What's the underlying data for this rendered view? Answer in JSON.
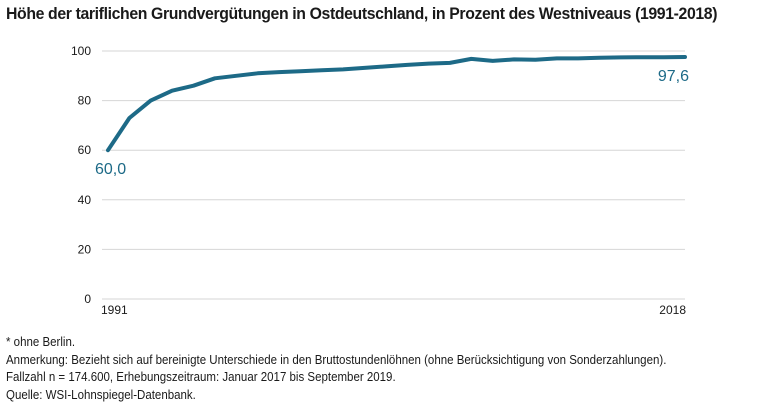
{
  "title": "Höhe der tariflichen Grundvergütungen in Ostdeutschland, in Prozent des Westniveaus (1991-2018)",
  "chart_data": {
    "type": "line",
    "title": "Höhe der tariflichen Grundvergütungen in Ostdeutschland, in Prozent des Westniveaus (1991-2018)",
    "xlabel": "",
    "ylabel": "",
    "x": [
      1991,
      1992,
      1993,
      1994,
      1995,
      1996,
      1997,
      1998,
      1999,
      2000,
      2001,
      2002,
      2003,
      2004,
      2005,
      2006,
      2007,
      2008,
      2009,
      2010,
      2011,
      2012,
      2013,
      2014,
      2015,
      2016,
      2017,
      2018
    ],
    "series": [
      {
        "name": "",
        "color": "#1d6a87",
        "values": [
          60.0,
          73.0,
          80.0,
          84.0,
          86.0,
          89.0,
          90.0,
          91.0,
          91.5,
          91.8,
          92.2,
          92.6,
          93.2,
          93.8,
          94.4,
          94.9,
          95.2,
          96.8,
          96.0,
          96.6,
          96.5,
          97.0,
          97.0,
          97.3,
          97.4,
          97.5,
          97.5,
          97.6
        ]
      }
    ],
    "xlim": [
      1991,
      2018
    ],
    "ylim": [
      0,
      100
    ],
    "yticks": [
      0,
      20,
      40,
      60,
      80,
      100
    ],
    "xtick_labels": [
      "1991",
      "2018"
    ],
    "grid": "horizontal",
    "annotations": [
      {
        "text": "60,0",
        "x": 1991,
        "y": 60.0
      },
      {
        "text": "97,6",
        "x": 2018,
        "y": 97.6
      }
    ]
  },
  "notes": [
    "* ohne Berlin.",
    "Anmerkung: Bezieht sich auf bereinigte Unterschiede in den Bruttostundenlöhnen (ohne Berücksichtigung von Sonderzahlungen).",
    "Fallzahl n = 174.600, Erhebungszeitraum: Januar 2017 bis September 2019.",
    "Quelle: WSI-Lohnspiegel-Datenbank."
  ]
}
